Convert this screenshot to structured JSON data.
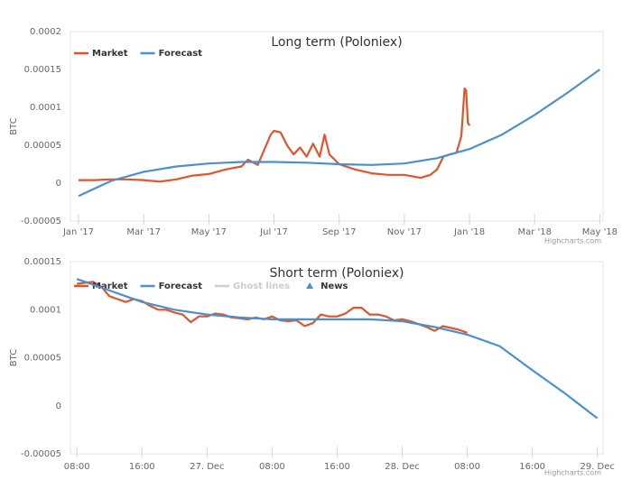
{
  "chart_data": [
    {
      "type": "line",
      "title": "Long term (Poloniex)",
      "y_label": "BTC",
      "credits": "Highcharts.com",
      "xlim": [
        -0.25,
        16.1
      ],
      "ylim": [
        -5e-05,
        0.0002
      ],
      "xticks": [
        {
          "value": 0,
          "label": "Jan '17"
        },
        {
          "value": 2,
          "label": "Mar '17"
        },
        {
          "value": 4,
          "label": "May '17"
        },
        {
          "value": 6,
          "label": "Jul '17"
        },
        {
          "value": 8,
          "label": "Sep '17"
        },
        {
          "value": 10,
          "label": "Nov '17"
        },
        {
          "value": 12,
          "label": "Jan '18"
        },
        {
          "value": 14,
          "label": "Mar '18"
        },
        {
          "value": 16,
          "label": "May '18"
        }
      ],
      "yticks": [
        -5e-05,
        0,
        5e-05,
        0.0001,
        0.00015,
        0.0002
      ],
      "series": [
        {
          "name": "Market",
          "color": "#e2542a",
          "x": [
            0,
            0.5,
            1,
            1.5,
            2,
            2.5,
            3,
            3.5,
            4,
            4.5,
            5,
            5.2,
            5.5,
            5.7,
            5.9,
            6.0,
            6.2,
            6.4,
            6.6,
            6.8,
            7.0,
            7.2,
            7.4,
            7.55,
            7.7,
            8,
            8.5,
            9,
            9.5,
            10,
            10.5,
            10.8,
            11,
            11.2,
            11.4,
            11.6,
            11.75,
            11.85,
            11.9,
            11.95,
            12.0
          ],
          "values": [
            4e-06,
            4e-06,
            5e-06,
            5e-06,
            4e-06,
            2e-06,
            5e-06,
            1e-05,
            1.2e-05,
            1.8e-05,
            2.2e-05,
            3.1e-05,
            2.4e-05,
            4.4e-05,
            6.4e-05,
            6.9e-05,
            6.7e-05,
            5e-05,
            3.8e-05,
            4.7e-05,
            3.5e-05,
            5.2e-05,
            3.5e-05,
            6.4e-05,
            3.8e-05,
            2.5e-05,
            1.8e-05,
            1.3e-05,
            1.1e-05,
            1.1e-05,
            7e-06,
            1.1e-05,
            1.8e-05,
            3.5e-05,
            3.8e-05,
            4e-05,
            6.2e-05,
            0.000125,
            0.000122,
            8e-05,
            7.6e-05
          ]
        },
        {
          "name": "Forecast",
          "color": "#4a90d0",
          "x": [
            0,
            1,
            2,
            3,
            4,
            5,
            6,
            7,
            8,
            9,
            10,
            11,
            12,
            13,
            14,
            15,
            16
          ],
          "values": [
            -1.7e-05,
            3e-06,
            1.5e-05,
            2.2e-05,
            2.6e-05,
            2.8e-05,
            2.8e-05,
            2.7e-05,
            2.5e-05,
            2.4e-05,
            2.6e-05,
            3.3e-05,
            4.5e-05,
            6.4e-05,
            9e-05,
            0.000119,
            0.00015
          ]
        }
      ]
    },
    {
      "type": "line",
      "title": "Short term (Poloniex)",
      "y_label": "BTC",
      "credits": "Highcharts.com",
      "xlim": [
        -0.8,
        64.7
      ],
      "ylim": [
        -5e-05,
        0.00015
      ],
      "xticks": [
        {
          "value": 0,
          "label": "08:00"
        },
        {
          "value": 8,
          "label": "16:00"
        },
        {
          "value": 16,
          "label": "27. Dec"
        },
        {
          "value": 24,
          "label": "08:00"
        },
        {
          "value": 32,
          "label": "16:00"
        },
        {
          "value": 40,
          "label": "28. Dec"
        },
        {
          "value": 48,
          "label": "08:00"
        },
        {
          "value": 56,
          "label": "16:00"
        },
        {
          "value": 64,
          "label": "29. Dec"
        }
      ],
      "yticks": [
        -5e-05,
        0,
        5e-05,
        0.0001,
        0.00015
      ],
      "series": [
        {
          "name": "Market",
          "color": "#e2542a",
          "x": [
            0,
            1,
            2,
            3,
            4,
            5,
            6,
            7,
            8,
            9,
            10,
            11,
            12,
            13,
            14,
            15,
            16,
            17,
            18,
            19,
            20,
            21,
            22,
            23,
            24,
            25,
            26,
            27,
            28,
            29,
            30,
            31,
            32,
            33,
            34,
            35,
            36,
            37,
            38,
            39,
            40,
            41,
            42,
            43,
            44,
            45,
            46,
            47,
            48
          ],
          "values": [
            0.000127,
            0.000128,
            0.000129,
            0.000124,
            0.000114,
            0.000111,
            0.000108,
            0.000111,
            0.000109,
            0.000104,
            0.0001,
            0.0001,
            9.7e-05,
            9.5e-05,
            8.7e-05,
            9.3e-05,
            9.3e-05,
            9.6e-05,
            9.5e-05,
            9.2e-05,
            9.1e-05,
            9e-05,
            9.2e-05,
            9e-05,
            9.3e-05,
            8.9e-05,
            8.8e-05,
            8.9e-05,
            8.3e-05,
            8.6e-05,
            9.5e-05,
            9.3e-05,
            9.3e-05,
            9.6e-05,
            0.000102,
            0.000102,
            9.5e-05,
            9.5e-05,
            9.3e-05,
            8.9e-05,
            9e-05,
            8.8e-05,
            8.5e-05,
            8.2e-05,
            7.8e-05,
            8.3e-05,
            8.1e-05,
            7.9e-05,
            7.6e-05
          ]
        },
        {
          "name": "Forecast",
          "color": "#4a90d0",
          "x": [
            0,
            4,
            8,
            12,
            16,
            20,
            24,
            28,
            32,
            36,
            40,
            44,
            48,
            52,
            56,
            60,
            64
          ],
          "values": [
            0.000132,
            0.00012,
            0.000108,
            0.0001,
            9.5e-05,
            9.2e-05,
            9e-05,
            9e-05,
            9e-05,
            9e-05,
            8.8e-05,
            8.2e-05,
            7.4e-05,
            6.2e-05,
            3.7e-05,
            1.3e-05,
            -1.3e-05
          ]
        },
        {
          "name": "Ghost lines",
          "color": "#cccccc",
          "visible": false,
          "x": [],
          "values": []
        },
        {
          "name": "News",
          "color": "#4a90d0",
          "marker": "triangle",
          "x": [],
          "values": []
        }
      ]
    }
  ]
}
